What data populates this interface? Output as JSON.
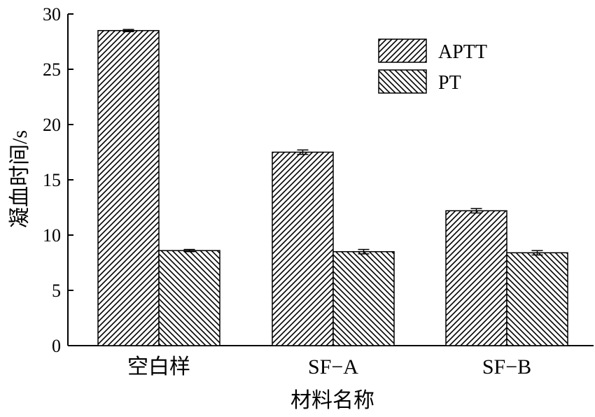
{
  "chart_data": {
    "type": "bar",
    "categories": [
      "空白样",
      "SF−A",
      "SF−B"
    ],
    "series": [
      {
        "name": "APTT",
        "values": [
          28.5,
          17.5,
          12.2
        ],
        "errors": [
          0.1,
          0.2,
          0.2
        ],
        "pattern": "diagonal-up"
      },
      {
        "name": "PT",
        "values": [
          8.6,
          8.5,
          8.4
        ],
        "errors": [
          0.1,
          0.2,
          0.2
        ],
        "pattern": "diagonal-down"
      }
    ],
    "title": "",
    "xlabel": "材料名称",
    "ylabel": "凝血时间/s",
    "ylim": [
      0,
      30
    ],
    "yticks": [
      0,
      5,
      10,
      15,
      20,
      25,
      30
    ],
    "grid": false,
    "legend_position": "top-right"
  }
}
